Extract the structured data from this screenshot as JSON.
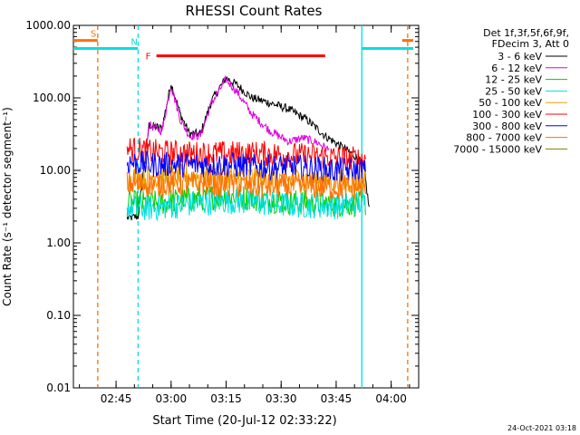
{
  "chart_data": {
    "type": "line",
    "title": "RHESSI Count Rates",
    "xlabel": "Start Time (20-Jul-12 02:33:22)",
    "ylabel": "Count Rate (s⁻¹ detector segment⁻¹)",
    "yscale": "log",
    "ylim": [
      0.01,
      1000
    ],
    "xlim": [
      "02:33:22",
      "04:07:30"
    ],
    "x_ticks": [
      "02:45",
      "03:00",
      "03:15",
      "03:30",
      "03:45",
      "04:00"
    ],
    "y_ticks": [
      "0.01",
      "0.10",
      "1.00",
      "10.00",
      "100.00",
      "1000.00"
    ],
    "legend_header": [
      "Det 1f,3f,5f,6f,9f,",
      "FDecim 3, Att 0"
    ],
    "legend_position": "right",
    "series": [
      {
        "name": "3 - 6 keV",
        "color": "#000000",
        "points": [
          [
            "02:48:00",
            2.2
          ],
          [
            "02:51:00",
            2.3
          ],
          [
            "02:54:00",
            42
          ],
          [
            "02:57:30",
            38
          ],
          [
            "03:00:00",
            160
          ],
          [
            "03:02:30",
            60
          ],
          [
            "03:05:00",
            32
          ],
          [
            "03:08:00",
            32
          ],
          [
            "03:11:00",
            90
          ],
          [
            "03:15:00",
            190
          ],
          [
            "03:18:00",
            150
          ],
          [
            "03:22:00",
            100
          ],
          [
            "03:27:00",
            85
          ],
          [
            "03:32:00",
            70
          ],
          [
            "03:37:00",
            50
          ],
          [
            "03:42:00",
            30
          ],
          [
            "03:46:00",
            22
          ],
          [
            "03:50:00",
            16
          ],
          [
            "03:52:30",
            12
          ],
          [
            "03:54:00",
            3
          ]
        ]
      },
      {
        "name": "6 - 12 keV",
        "color": "#e000e0",
        "points": [
          [
            "02:53:00",
            20
          ],
          [
            "02:54:00",
            42
          ],
          [
            "02:57:30",
            35
          ],
          [
            "03:00:00",
            150
          ],
          [
            "03:02:30",
            50
          ],
          [
            "03:05:00",
            30
          ],
          [
            "03:08:00",
            30
          ],
          [
            "03:11:00",
            85
          ],
          [
            "03:15:00",
            180
          ],
          [
            "03:18:00",
            120
          ],
          [
            "03:22:00",
            60
          ],
          [
            "03:27:00",
            35
          ],
          [
            "03:32:00",
            25
          ],
          [
            "03:36:00",
            28
          ],
          [
            "03:40:00",
            24
          ],
          [
            "03:43:00",
            19
          ]
        ]
      },
      {
        "name": "12 - 25 keV",
        "color": "#00cc00",
        "points": [
          [
            "02:48:00",
            3.5
          ],
          [
            "02:55:00",
            3.5
          ],
          [
            "03:05:00",
            4.0
          ],
          [
            "03:15:00",
            4.5
          ],
          [
            "03:25:00",
            4.0
          ],
          [
            "03:35:00",
            3.6
          ],
          [
            "03:45:00",
            3.4
          ],
          [
            "03:53:00",
            3.5
          ]
        ]
      },
      {
        "name": "25 - 50 keV",
        "color": "#00e0e0",
        "points": [
          [
            "02:48:00",
            3.0
          ],
          [
            "02:55:00",
            3.0
          ],
          [
            "03:05:00",
            3.4
          ],
          [
            "03:15:00",
            3.8
          ],
          [
            "03:25:00",
            3.5
          ],
          [
            "03:35:00",
            3.3
          ],
          [
            "03:45:00",
            3.2
          ],
          [
            "03:53:00",
            3.6
          ]
        ]
      },
      {
        "name": "50 - 100 keV",
        "color": "#e8a000",
        "points": [
          [
            "02:48:00",
            8.0
          ],
          [
            "02:55:00",
            8.0
          ],
          [
            "03:05:00",
            8.2
          ],
          [
            "03:15:00",
            8.3
          ],
          [
            "03:25:00",
            7.8
          ],
          [
            "03:35:00",
            7.5
          ],
          [
            "03:45:00",
            7.2
          ],
          [
            "03:53:00",
            7.0
          ]
        ]
      },
      {
        "name": "100 - 300 keV",
        "color": "#ff0000",
        "points": [
          [
            "02:48:00",
            20
          ],
          [
            "02:55:00",
            18
          ],
          [
            "03:05:00",
            17
          ],
          [
            "03:15:00",
            17
          ],
          [
            "03:25:00",
            17
          ],
          [
            "03:35:00",
            16
          ],
          [
            "03:45:00",
            15
          ],
          [
            "03:53:00",
            14
          ]
        ]
      },
      {
        "name": "300 - 800 keV",
        "color": "#0000ff",
        "points": [
          [
            "02:48:00",
            13
          ],
          [
            "02:55:00",
            12
          ],
          [
            "03:05:00",
            12
          ],
          [
            "03:15:00",
            12
          ],
          [
            "03:25:00",
            11
          ],
          [
            "03:35:00",
            11
          ],
          [
            "03:45:00",
            10
          ],
          [
            "03:53:00",
            10
          ]
        ]
      },
      {
        "name": "800 - 7000 keV",
        "color": "#ff7000",
        "points": [
          [
            "02:48:00",
            6.5
          ],
          [
            "02:55:00",
            6.5
          ],
          [
            "03:05:00",
            6.5
          ],
          [
            "03:15:00",
            6.3
          ],
          [
            "03:25:00",
            6.0
          ],
          [
            "03:35:00",
            6.0
          ],
          [
            "03:45:00",
            5.8
          ],
          [
            "03:53:00",
            5.8
          ]
        ]
      },
      {
        "name": "7000 - 15000 keV",
        "color": "#808000",
        "points": []
      }
    ],
    "annotations": [
      {
        "label": "S",
        "color": "#ff7000",
        "y": 620,
        "segments": [
          [
            "02:33:22",
            "02:40:00"
          ],
          [
            "04:03:00",
            "04:06:00"
          ]
        ],
        "boundaries": [
          "02:40:00",
          "04:04:30"
        ]
      },
      {
        "label": "N",
        "color": "#00e0e0",
        "y": 480,
        "segments": [
          [
            "02:33:22",
            "02:51:00"
          ],
          [
            "03:52:00",
            "04:06:00"
          ]
        ],
        "boundaries": [
          "02:51:00",
          "03:52:00"
        ]
      },
      {
        "label": "F",
        "color": "#ff0000",
        "y": 380,
        "segments": [
          [
            "02:56:00",
            "03:42:00"
          ]
        ],
        "boundaries": []
      }
    ],
    "timestamp": "24-Oct-2021 03:18"
  }
}
